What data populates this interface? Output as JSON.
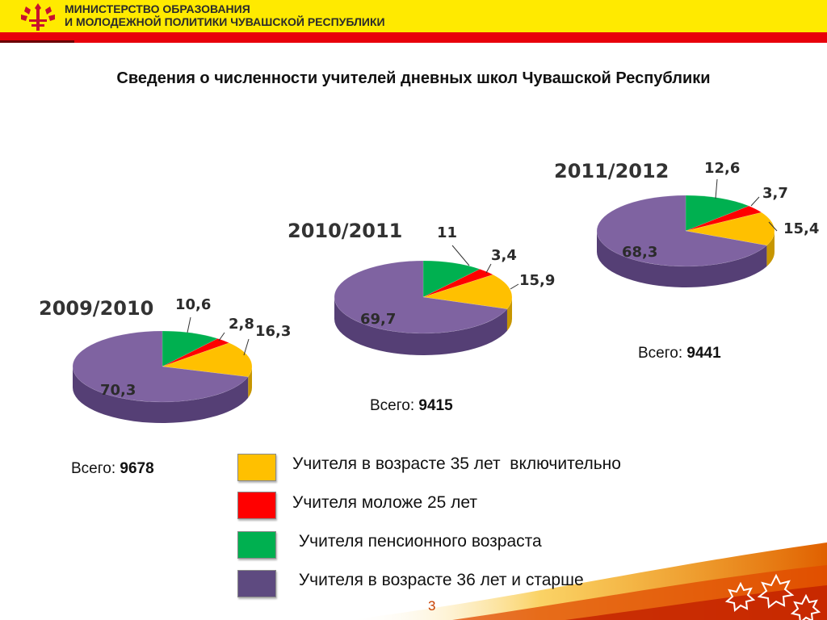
{
  "header": {
    "line1": "МИНИСТЕРСТВО ОБРАЗОВАНИЯ",
    "line2": "И МОЛОДЕЖНОЙ ПОЛИТИКИ ЧУВАШСКОЙ РЕСПУБЛИКИ"
  },
  "page_title": "Сведения о численности учителей  дневных школ Чувашской Республики",
  "colors": {
    "yellow": "#ffc000",
    "red": "#ff0000",
    "green": "#00b050",
    "purple": "#7f63a1",
    "header_yellow": "#ffea00",
    "header_red": "#e8000b"
  },
  "total_prefix": "Всего: ",
  "chart_data": [
    {
      "type": "pie",
      "title": "2009/2010",
      "categories": [
        "Учителя пенсионного возраста",
        "Учителя моложе 25 лет",
        "Учителя в возрасте 35 лет  включительно",
        "Учителя в возрасте 36 лет и старше"
      ],
      "values": [
        10.6,
        2.8,
        16.3,
        70.3
      ],
      "value_labels": [
        "10,6",
        "2,8",
        "16,3",
        "70,3"
      ],
      "total": "9678"
    },
    {
      "type": "pie",
      "title": "2010/2011",
      "categories": [
        "Учителя пенсионного возраста",
        "Учителя моложе 25 лет",
        "Учителя в возрасте 35 лет  включительно",
        "Учителя в возрасте 36 лет и старше"
      ],
      "values": [
        11,
        3.4,
        15.9,
        69.7
      ],
      "value_labels": [
        "11",
        "3,4",
        "15,9",
        "69,7"
      ],
      "total": "9415"
    },
    {
      "type": "pie",
      "title": "2011/2012",
      "categories": [
        "Учителя пенсионного возраста",
        "Учителя моложе 25 лет",
        "Учителя в возрасте 35 лет  включительно",
        "Учителя в возрасте 36 лет и старше"
      ],
      "values": [
        12.6,
        3.7,
        15.4,
        68.3
      ],
      "value_labels": [
        "12,6",
        "3,7",
        "15,4",
        "68,3"
      ],
      "total": "9441"
    }
  ],
  "legend": [
    {
      "label": "Учителя в возрасте 35 лет  включительно",
      "color": "#ffc000"
    },
    {
      "label": "Учителя моложе 25 лет",
      "color": "#ff0000"
    },
    {
      "label": " Учителя пенсионного возраста",
      "color": "#00b050"
    },
    {
      "label": " Учителя в возрасте 36 лет и старше",
      "color": "#7f63a1"
    }
  ],
  "page_number": "3"
}
